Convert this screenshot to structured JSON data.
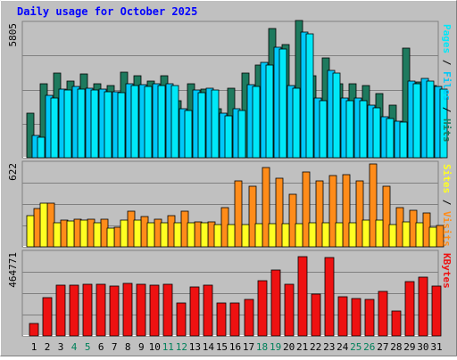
{
  "title": "Daily usage for October 2025",
  "colors": {
    "background": "#C0C0C0",
    "panel_bg": "#C0C0C0",
    "title": "#0000FF",
    "hits": "#1E7A5E",
    "files": "#00C8F8",
    "pages": "#00E8F8",
    "visits": "#FF8C1A",
    "sites": "#FFFF22",
    "kbytes": "#EE1111",
    "weekend_label": "#00805A",
    "weekday_label": "#000080"
  },
  "chart_data": [
    {
      "type": "bar",
      "panel": "hits-files-pages",
      "ymax_label": "5805",
      "legend": [
        "Pages",
        "Files",
        "Hits"
      ],
      "categories": [
        "1",
        "2",
        "3",
        "4",
        "5",
        "6",
        "7",
        "8",
        "9",
        "10",
        "11",
        "12",
        "13",
        "14",
        "15",
        "16",
        "17",
        "18",
        "19",
        "20",
        "21",
        "22",
        "23",
        "24",
        "25",
        "26",
        "27",
        "28",
        "29",
        "30",
        "31"
      ],
      "weekend_days": [
        "4",
        "5",
        "11",
        "12",
        "18",
        "19",
        "25",
        "26"
      ],
      "ymax": 5805,
      "series": [
        {
          "name": "Hits",
          "values": [
            1950,
            3250,
            3700,
            3350,
            3650,
            3250,
            3150,
            3750,
            3600,
            3350,
            3600,
            2500,
            3250,
            3000,
            2150,
            3050,
            3700,
            4050,
            5650,
            4950,
            6000,
            3600,
            4350,
            3250,
            3250,
            3150,
            2800,
            2300,
            4800,
            3300,
            3150
          ]
        },
        {
          "name": "Files",
          "values": [
            980,
            2720,
            3000,
            3100,
            3050,
            3000,
            2900,
            3250,
            3200,
            3250,
            3250,
            2150,
            2950,
            3050,
            1950,
            2150,
            3200,
            4150,
            4850,
            3150,
            5500,
            2610,
            3800,
            2610,
            2610,
            2300,
            1800,
            1600,
            3350,
            3450,
            3100
          ]
        },
        {
          "name": "Pages",
          "values": [
            900,
            2600,
            2950,
            3000,
            2950,
            2900,
            2850,
            3150,
            3100,
            3150,
            3150,
            2050,
            2850,
            2950,
            1850,
            2050,
            3100,
            4050,
            4750,
            3050,
            5400,
            2500,
            3700,
            2500,
            2500,
            2200,
            1700,
            1550,
            3250,
            3350,
            3000
          ]
        }
      ]
    },
    {
      "type": "bar",
      "panel": "visits-sites",
      "ymax_label": "622",
      "legend": [
        "Sites",
        "Visits"
      ],
      "categories": [
        "1",
        "2",
        "3",
        "4",
        "5",
        "6",
        "7",
        "8",
        "9",
        "10",
        "11",
        "12",
        "13",
        "14",
        "15",
        "16",
        "17",
        "18",
        "19",
        "20",
        "21",
        "22",
        "23",
        "24",
        "25",
        "26",
        "27",
        "28",
        "29",
        "30",
        "31"
      ],
      "ymax": 622,
      "series": [
        {
          "name": "Visits",
          "values": [
            290,
            330,
            200,
            210,
            210,
            210,
            150,
            270,
            230,
            210,
            240,
            270,
            190,
            190,
            300,
            500,
            460,
            600,
            520,
            400,
            570,
            500,
            540,
            550,
            500,
            630,
            460,
            300,
            280,
            260,
            160
          ]
        },
        {
          "name": "Sites",
          "values": [
            240,
            330,
            185,
            195,
            200,
            180,
            140,
            200,
            200,
            180,
            180,
            185,
            180,
            180,
            170,
            170,
            170,
            175,
            175,
            175,
            175,
            180,
            180,
            180,
            180,
            200,
            200,
            170,
            190,
            180,
            150
          ]
        }
      ]
    },
    {
      "type": "bar",
      "panel": "kbytes",
      "ymax_label": "464771",
      "legend": [
        "KBytes"
      ],
      "categories": [
        "1",
        "2",
        "3",
        "4",
        "5",
        "6",
        "7",
        "8",
        "9",
        "10",
        "11",
        "12",
        "13",
        "14",
        "15",
        "16",
        "17",
        "18",
        "19",
        "20",
        "21",
        "22",
        "23",
        "24",
        "25",
        "26",
        "27",
        "28",
        "29",
        "30",
        "31"
      ],
      "ymax": 464771,
      "series": [
        {
          "name": "KBytes",
          "values": [
            70000,
            215000,
            290000,
            290000,
            295000,
            295000,
            285000,
            300000,
            295000,
            290000,
            295000,
            185000,
            280000,
            290000,
            185000,
            185000,
            205000,
            315000,
            375000,
            295000,
            450000,
            235000,
            445000,
            220000,
            210000,
            205000,
            255000,
            140000,
            310000,
            335000,
            285000
          ]
        }
      ]
    }
  ]
}
